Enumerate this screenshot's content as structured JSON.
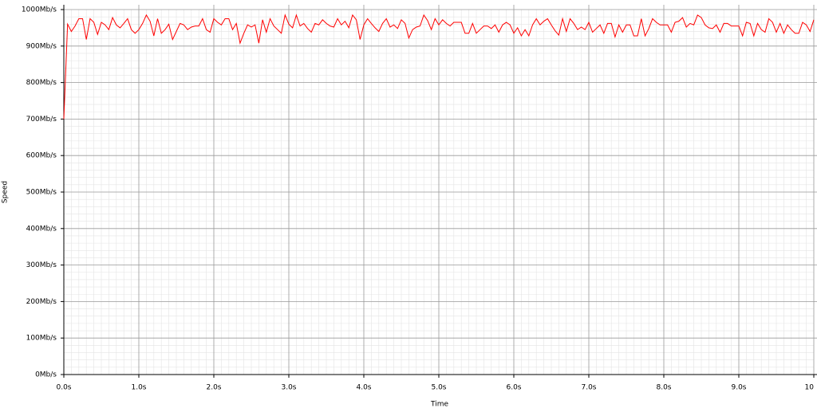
{
  "chart_data": {
    "type": "line",
    "xlabel": "Time",
    "ylabel": "Speed",
    "x": [
      0,
      0.05,
      0.1,
      0.15,
      0.2,
      0.25,
      0.3,
      0.35,
      0.4,
      0.45,
      0.5,
      0.55,
      0.6,
      0.65,
      0.7,
      0.75,
      0.8,
      0.85,
      0.9,
      0.95,
      1,
      1.05,
      1.1,
      1.15,
      1.2,
      1.25,
      1.3,
      1.35,
      1.4,
      1.45,
      1.5,
      1.55,
      1.6,
      1.65,
      1.7,
      1.75,
      1.8,
      1.85,
      1.9,
      1.95,
      2,
      2.05,
      2.1,
      2.15,
      2.2,
      2.25,
      2.3,
      2.35,
      2.4,
      2.45,
      2.5,
      2.55,
      2.6,
      2.65,
      2.7,
      2.75,
      2.8,
      2.85,
      2.9,
      2.95,
      3,
      3.05,
      3.1,
      3.15,
      3.2,
      3.25,
      3.3,
      3.35,
      3.4,
      3.45,
      3.5,
      3.55,
      3.6,
      3.65,
      3.7,
      3.75,
      3.8,
      3.85,
      3.9,
      3.95,
      4,
      4.05,
      4.1,
      4.15,
      4.2,
      4.25,
      4.3,
      4.35,
      4.4,
      4.45,
      4.5,
      4.55,
      4.6,
      4.65,
      4.7,
      4.75,
      4.8,
      4.85,
      4.9,
      4.95,
      5,
      5.05,
      5.1,
      5.15,
      5.2,
      5.25,
      5.3,
      5.35,
      5.4,
      5.45,
      5.5,
      5.55,
      5.6,
      5.65,
      5.7,
      5.75,
      5.8,
      5.85,
      5.9,
      5.95,
      6,
      6.05,
      6.1,
      6.15,
      6.2,
      6.25,
      6.3,
      6.35,
      6.4,
      6.45,
      6.5,
      6.55,
      6.6,
      6.65,
      6.7,
      6.75,
      6.8,
      6.85,
      6.9,
      6.95,
      7,
      7.05,
      7.1,
      7.15,
      7.2,
      7.25,
      7.3,
      7.35,
      7.4,
      7.45,
      7.5,
      7.55,
      7.6,
      7.65,
      7.7,
      7.75,
      7.8,
      7.85,
      7.9,
      7.95,
      8,
      8.05,
      8.1,
      8.15,
      8.2,
      8.25,
      8.3,
      8.35,
      8.4,
      8.45,
      8.5,
      8.55,
      8.6,
      8.65,
      8.7,
      8.75,
      8.8,
      8.85,
      8.9,
      8.95,
      9,
      9.05,
      9.1,
      9.15,
      9.2,
      9.25,
      9.3,
      9.35,
      9.4,
      9.45,
      9.5,
      9.55,
      9.6,
      9.65,
      9.7,
      9.75,
      9.8,
      9.85,
      9.9,
      9.95,
      10
    ],
    "series": [
      {
        "color": "#ff0000",
        "values": [
          700,
          960,
          940,
          955,
          975,
          975,
          918,
          975,
          965,
          932,
          965,
          958,
          945,
          978,
          958,
          950,
          962,
          975,
          945,
          935,
          945,
          962,
          985,
          968,
          928,
          975,
          935,
          945,
          960,
          918,
          940,
          962,
          958,
          945,
          952,
          955,
          955,
          975,
          945,
          938,
          975,
          965,
          958,
          975,
          975,
          945,
          962,
          908,
          935,
          958,
          952,
          958,
          908,
          972,
          938,
          975,
          955,
          945,
          935,
          985,
          960,
          950,
          985,
          955,
          962,
          948,
          938,
          962,
          958,
          972,
          962,
          955,
          952,
          975,
          958,
          968,
          950,
          985,
          972,
          918,
          958,
          975,
          962,
          950,
          940,
          962,
          975,
          952,
          958,
          948,
          972,
          962,
          922,
          945,
          952,
          955,
          985,
          970,
          945,
          975,
          958,
          972,
          962,
          955,
          965,
          965,
          965,
          935,
          935,
          962,
          935,
          945,
          955,
          955,
          948,
          958,
          938,
          958,
          965,
          958,
          935,
          950,
          928,
          945,
          928,
          958,
          975,
          958,
          968,
          975,
          958,
          942,
          930,
          975,
          940,
          975,
          962,
          945,
          952,
          945,
          965,
          938,
          948,
          958,
          935,
          962,
          962,
          925,
          958,
          938,
          958,
          958,
          928,
          928,
          975,
          928,
          948,
          975,
          965,
          958,
          958,
          958,
          938,
          965,
          968,
          978,
          952,
          962,
          958,
          985,
          978,
          958,
          950,
          948,
          958,
          938,
          962,
          962,
          955,
          955,
          955,
          928,
          965,
          962,
          928,
          962,
          945,
          938,
          975,
          965,
          938,
          962,
          935,
          958,
          945,
          935,
          935,
          965,
          958,
          940,
          972
        ]
      }
    ],
    "xlim": [
      0,
      10
    ],
    "xticks": [
      {
        "value": 0,
        "label": "0.0s"
      },
      {
        "value": 1,
        "label": "1.0s"
      },
      {
        "value": 2,
        "label": "2.0s"
      },
      {
        "value": 3,
        "label": "3.0s"
      },
      {
        "value": 4,
        "label": "4.0s"
      },
      {
        "value": 5,
        "label": "5.0s"
      },
      {
        "value": 6,
        "label": "6.0s"
      },
      {
        "value": 7,
        "label": "7.0s"
      },
      {
        "value": 8,
        "label": "8.0s"
      },
      {
        "value": 9,
        "label": "9.0s"
      },
      10
    ],
    "ylim": [
      0,
      1000
    ],
    "yticks": [
      {
        "value": 0,
        "label": "0Mb/s"
      },
      {
        "value": 100,
        "label": "100Mb/s"
      },
      {
        "value": 200,
        "label": "200Mb/s"
      },
      {
        "value": 300,
        "label": "300Mb/s"
      },
      {
        "value": 400,
        "label": "400Mb/s"
      },
      {
        "value": 500,
        "label": "500Mb/s"
      },
      {
        "value": 600,
        "label": "600Mb/s"
      },
      {
        "value": 700,
        "label": "700Mb/s"
      },
      {
        "value": 800,
        "label": "800Mb/s"
      },
      {
        "value": 900,
        "label": "900Mb/s"
      },
      {
        "value": 1000,
        "label": "1000Mb/s"
      }
    ],
    "grid": true
  }
}
